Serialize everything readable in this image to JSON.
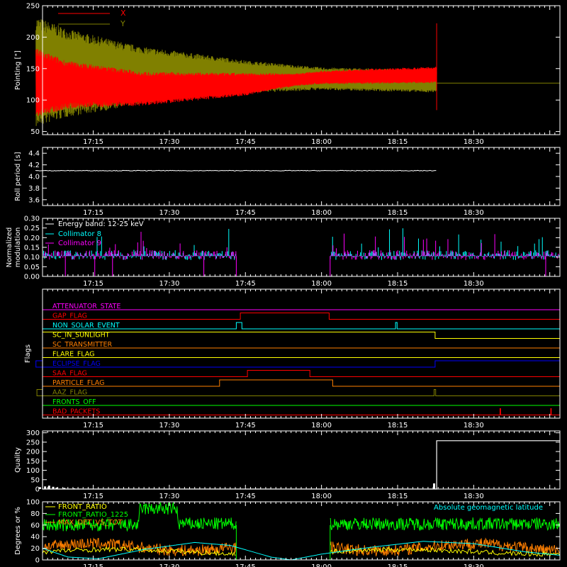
{
  "time_ticks": [
    "17:15",
    "17:30",
    "17:45",
    "18:00",
    "18:15",
    "18:30"
  ],
  "time_tick_minutes": [
    1035,
    1050,
    1065,
    1080,
    1095,
    1110
  ],
  "time_range_minutes": [
    1025,
    1127
  ],
  "chart_data": [
    {
      "type": "line",
      "ylabel": "Pointing [\"]",
      "ylim": [
        45,
        250
      ],
      "yticks": [
        "50",
        "100",
        "150",
        "200",
        "250"
      ],
      "ytick_values": [
        50,
        100,
        150,
        200,
        250
      ],
      "legend": [
        {
          "name": "X",
          "color": "#ff0000"
        },
        {
          "name": "Y",
          "color": "#808000"
        }
      ],
      "series": [
        {
          "name": "X",
          "color": "#ff0000",
          "center": [
            [
              1025,
              127
            ],
            [
              1023.7,
              127
            ],
            [
              1045,
              118
            ],
            [
              1065,
              125
            ],
            [
              1080,
              136
            ],
            [
              1102.7,
              140
            ]
          ],
          "halfwidth": [
            [
              1023.7,
              55
            ],
            [
              1030,
              38
            ],
            [
              1045,
              27
            ],
            [
              1065,
              18
            ],
            [
              1075,
              10
            ],
            [
              1090,
              12
            ],
            [
              1102.7,
              13
            ]
          ]
        },
        {
          "name": "Y",
          "color": "#808000",
          "center": [
            [
              1023.7,
              145
            ],
            [
              1040,
              140
            ],
            [
              1060,
              138
            ],
            [
              1080,
              134
            ],
            [
              1102.7,
              130
            ]
          ],
          "halfwidth": [
            [
              1023.7,
              88
            ],
            [
              1030,
              70
            ],
            [
              1045,
              45
            ],
            [
              1065,
              26
            ],
            [
              1080,
              18
            ],
            [
              1102.7,
              18
            ]
          ]
        }
      ],
      "flat_value": 127,
      "active_range": [
        1023.7,
        1102.7
      ],
      "spike_at": 1102.7,
      "spike_values": [
        84,
        222
      ]
    },
    {
      "type": "line",
      "ylabel": "Roll period [s]",
      "ylim": [
        3.5,
        4.5
      ],
      "yticks": [
        "3.6",
        "3.8",
        "4.0",
        "4.2",
        "4.4"
      ],
      "ytick_values": [
        3.6,
        3.8,
        4.0,
        4.2,
        4.4
      ],
      "series": [
        {
          "name": "",
          "color": "#ffffff",
          "value": 4.1
        }
      ]
    },
    {
      "type": "line",
      "ylabel": "Normalized\nmodulation",
      "ylim": [
        0,
        0.3
      ],
      "yticks": [
        "0.00",
        "0.05",
        "0.10",
        "0.15",
        "0.20",
        "0.25",
        "0.30"
      ],
      "ytick_values": [
        0,
        0.05,
        0.1,
        0.15,
        0.2,
        0.25,
        0.3
      ],
      "legend": [
        {
          "name": "Energy band: 12-25 keV",
          "color": "#ffffff"
        },
        {
          "name": "Collimator 8",
          "color": "#00ffff"
        },
        {
          "name": "Collimator 9",
          "color": "#ff00ff"
        }
      ],
      "gaps": [
        [
          1063.2,
          1081.7
        ]
      ],
      "baseline": 0.105,
      "dropouts": [
        1029.5,
        1035.3,
        1038.8,
        1056.8,
        1124.2
      ]
    },
    {
      "type": "line",
      "ylabel": "Flags",
      "flags": [
        {
          "name": "ATTENUATOR_STATE",
          "color": "#ff00ff",
          "steps": []
        },
        {
          "name": "GAP_FLAG",
          "color": "#ff0000",
          "steps": [
            [
              1064,
              1081.5
            ]
          ]
        },
        {
          "name": "NON_SOLAR_EVENT",
          "color": "#00ffff",
          "steps": [
            [
              1063.2,
              1064.3
            ],
            [
              1094.6,
              1094.9
            ]
          ]
        },
        {
          "name": "SC_IN_SUNLIGHT",
          "color": "#ffff00",
          "steps": [
            [
              1023.7,
              1102.4
            ]
          ]
        },
        {
          "name": "SC_TRANSMITTER",
          "color": "#ff7f00",
          "steps": []
        },
        {
          "name": "FLARE_FLAG",
          "color": "#ffff00",
          "steps": []
        },
        {
          "name": "ECLIPSE_FLAG",
          "color": "#0000ff",
          "steps": [
            [
              1025,
              1023.7
            ],
            [
              1102.4,
              1127
            ]
          ]
        },
        {
          "name": "SAA_FLAG",
          "color": "#ff0000",
          "steps": [
            [
              1065.4,
              1077.7
            ]
          ]
        },
        {
          "name": "PARTICLE_FLAG",
          "color": "#ff7f00",
          "steps": [
            [
              1059.9,
              1082.2
            ]
          ]
        },
        {
          "name": "AAZ_FLAG",
          "color": "#808000",
          "steps": [
            [
              1023.7,
              1023.9
            ],
            [
              1102.2,
              1102.5
            ]
          ]
        },
        {
          "name": "FRONTS_OFF",
          "color": "#00ff00",
          "steps": []
        },
        {
          "name": "BAD_PACKETS",
          "color": "#ff0000",
          "steps": [
            [
              1115.2,
              1115.3
            ],
            [
              1125.2,
              1125.3
            ]
          ]
        }
      ]
    },
    {
      "type": "line",
      "ylabel": "Quality",
      "ylim": [
        0,
        310
      ],
      "yticks": [
        "0",
        "50",
        "100",
        "150",
        "200",
        "250",
        "300"
      ],
      "ytick_values": [
        0,
        50,
        100,
        150,
        200,
        250,
        300
      ],
      "series": [
        {
          "name": "",
          "color": "#ffffff",
          "points": [
            [
              1025,
              258
            ],
            [
              1023.6,
              258
            ],
            [
              1023.6,
              0
            ],
            [
              1102.7,
              0
            ],
            [
              1102.7,
              258
            ],
            [
              1127,
              258
            ]
          ]
        }
      ],
      "blips": [
        [
          1024.5,
          10
        ],
        [
          1025.5,
          14
        ],
        [
          1026.3,
          18
        ],
        [
          1027.1,
          12
        ],
        [
          1027.8,
          8
        ],
        [
          1029.3,
          6
        ],
        [
          1031.2,
          4
        ],
        [
          1102.2,
          30
        ]
      ]
    },
    {
      "type": "line",
      "ylabel": "Degrees or %",
      "ylim": [
        0,
        100
      ],
      "yticks": [
        "0",
        "20",
        "40",
        "60",
        "80",
        "100"
      ],
      "ytick_values": [
        0,
        20,
        40,
        60,
        80,
        100
      ],
      "legend": [
        {
          "name": "FRONT_RATIO",
          "color": "#ffff00"
        },
        {
          "name": "FRONT_RATIO_1225",
          "color": "#00ff00"
        },
        {
          "name": "MAX_DET_VS_TOT",
          "color": "#ff7f00"
        }
      ],
      "annotation": {
        "text": "Absolute geomagnetic latitude",
        "color": "#00ffff"
      },
      "gaps": [
        [
          1063.2,
          1081.7
        ]
      ],
      "green_levels": [
        [
          1025,
          60
        ],
        [
          1044,
          60
        ],
        [
          1044.2,
          88
        ],
        [
          1051.5,
          88
        ],
        [
          1051.7,
          62
        ],
        [
          1063.2,
          62
        ],
        [
          1081.7,
          62
        ],
        [
          1127,
          62
        ]
      ],
      "orange_level": 22,
      "cyan_curve": [
        [
          1025,
          20
        ],
        [
          1030,
          5
        ],
        [
          1036,
          2
        ],
        [
          1045,
          18
        ],
        [
          1055,
          30
        ],
        [
          1062,
          25
        ],
        [
          1070,
          5
        ],
        [
          1074,
          0
        ],
        [
          1080,
          10
        ],
        [
          1090,
          22
        ],
        [
          1100,
          32
        ],
        [
          1110,
          28
        ],
        [
          1120,
          14
        ],
        [
          1127,
          8
        ]
      ]
    }
  ]
}
